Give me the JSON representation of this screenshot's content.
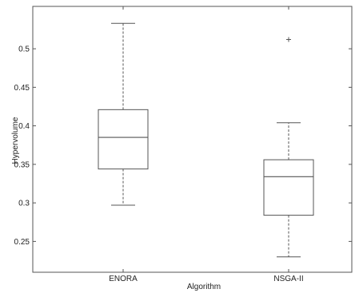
{
  "chart_data": {
    "type": "boxplot",
    "xlabel": "Algorithm",
    "ylabel": "Hypervolume",
    "categories": [
      "ENORA",
      "NSGA-II"
    ],
    "ylim": [
      0.21,
      0.555
    ],
    "yticks": [
      0.25,
      0.3,
      0.35,
      0.4,
      0.45,
      0.5
    ],
    "ytick_labels": [
      "0.25",
      "0.3",
      "0.35",
      "0.4",
      "0.45",
      "0.5"
    ],
    "grid": false,
    "boxes": [
      {
        "category": "ENORA",
        "whisker_low": 0.297,
        "q1": 0.344,
        "median": 0.385,
        "q3": 0.421,
        "whisker_high": 0.533,
        "outliers": []
      },
      {
        "category": "NSGA-II",
        "whisker_low": 0.23,
        "q1": 0.284,
        "median": 0.334,
        "q3": 0.356,
        "whisker_high": 0.404,
        "outliers": [
          0.512
        ]
      }
    ],
    "colors": {
      "box": "#555555",
      "axis": "#555555",
      "text": "#222222"
    }
  }
}
